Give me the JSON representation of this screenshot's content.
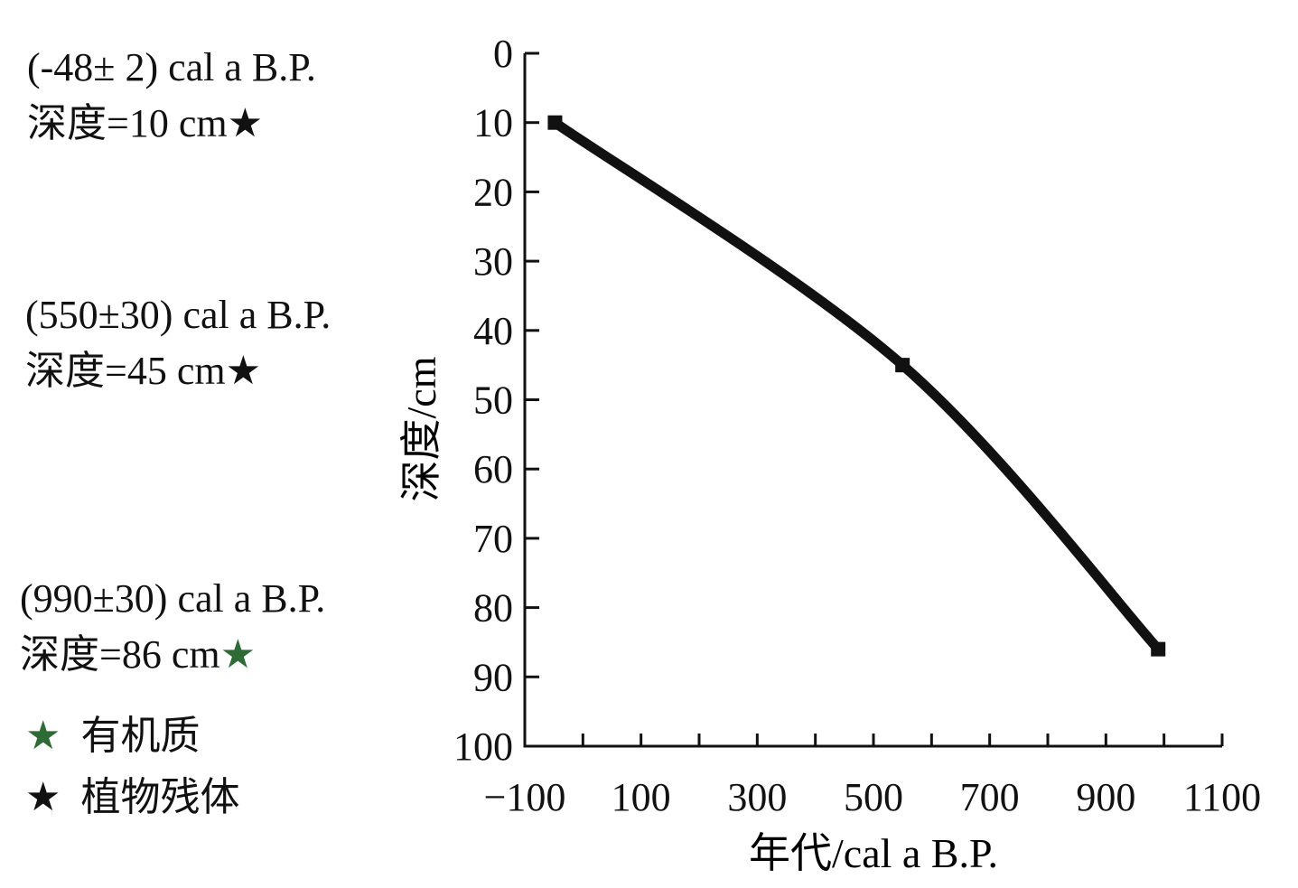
{
  "chart_data": {
    "type": "line",
    "xlabel": "年代/cal a B.P.",
    "ylabel": "深度/cm",
    "xlim": [
      -100,
      1100
    ],
    "ylim": [
      0,
      100
    ],
    "y_inverted": true,
    "x_ticks": [
      -100,
      0,
      100,
      200,
      300,
      400,
      500,
      600,
      700,
      800,
      900,
      1000,
      1100
    ],
    "x_tick_labels": [
      {
        "value": -100,
        "label": "−100"
      },
      {
        "value": 100,
        "label": "100"
      },
      {
        "value": 300,
        "label": "300"
      },
      {
        "value": 500,
        "label": "500"
      },
      {
        "value": 700,
        "label": "700"
      },
      {
        "value": 900,
        "label": "900"
      },
      {
        "value": 1100,
        "label": "1100"
      }
    ],
    "y_ticks": [
      0,
      10,
      20,
      30,
      40,
      50,
      60,
      70,
      80,
      90,
      100
    ],
    "y_tick_labels": [
      "0",
      "10",
      "20",
      "30",
      "40",
      "50",
      "60",
      "70",
      "80",
      "90",
      "100"
    ],
    "grid": false,
    "series": [
      {
        "x": [
          -48,
          550,
          990
        ],
        "y": [
          10,
          45,
          86
        ],
        "color": "#111111",
        "marker": "square"
      }
    ],
    "annotations": [
      {
        "age": "(-48± 2) cal a B.P.",
        "depth": "深度=10 cm",
        "star_color": "#111111"
      },
      {
        "age": "(550±30) cal a B.P.",
        "depth": "深度=45 cm",
        "star_color": "#111111"
      },
      {
        "age": "(990±30) cal a B.P.",
        "depth": "深度=86 cm",
        "star_color": "#2e6b35"
      }
    ],
    "legend": [
      {
        "label": "有机质",
        "star_color": "#2e6b35"
      },
      {
        "label": "植物残体",
        "star_color": "#111111"
      }
    ],
    "legend_position": "bottom-left"
  },
  "icons": {
    "star_glyph": "★"
  }
}
